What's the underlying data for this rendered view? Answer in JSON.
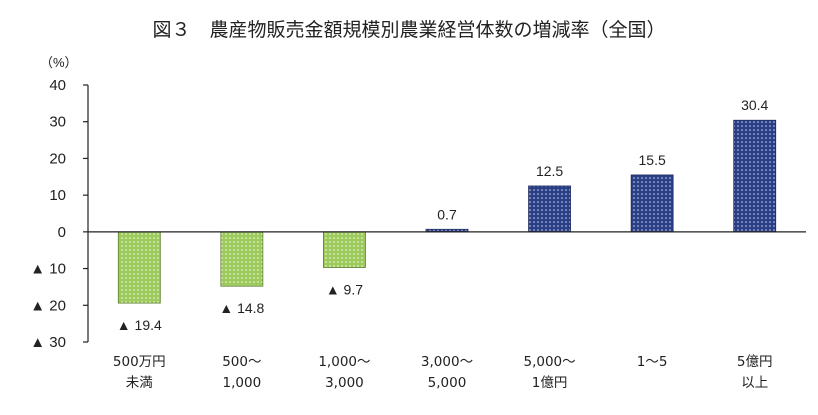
{
  "chart_data": {
    "type": "bar",
    "title": "図３　農産物販売金額規模別農業経営体数の増減率（全国）",
    "ylabel": "（%）",
    "ylim": [
      -30,
      40
    ],
    "yticks": [
      {
        "value": 40,
        "label": "40"
      },
      {
        "value": 30,
        "label": "30"
      },
      {
        "value": 20,
        "label": "20"
      },
      {
        "value": 10,
        "label": "10"
      },
      {
        "value": 0,
        "label": "0"
      },
      {
        "value": -10,
        "label": "▲ 10"
      },
      {
        "value": -20,
        "label": "▲ 20"
      },
      {
        "value": -30,
        "label": "▲ 30"
      }
    ],
    "categories": [
      [
        "500万円",
        "未満"
      ],
      [
        "500～",
        "1,000"
      ],
      [
        "1,000～",
        "3,000"
      ],
      [
        "3,000～",
        "5,000"
      ],
      [
        "5,000～",
        "1億円"
      ],
      [
        "1～5"
      ],
      [
        "5億円",
        "以上"
      ]
    ],
    "values": [
      -19.4,
      -14.8,
      -9.7,
      0.7,
      12.5,
      15.5,
      30.4
    ],
    "data_labels": [
      "▲ 19.4",
      "▲ 14.8",
      "▲ 9.7",
      "0.7",
      "12.5",
      "15.5",
      "30.4"
    ],
    "grid": false,
    "colors": {
      "negative_fill": "#9ccb5c",
      "negative_dot": "#f4f9ea",
      "negative_stroke": "#5a7d2a",
      "positive_fill": "#2b3f86",
      "positive_dot": "#c9d3f0",
      "positive_stroke": "#1d2b5e",
      "axis": "#222222"
    }
  }
}
